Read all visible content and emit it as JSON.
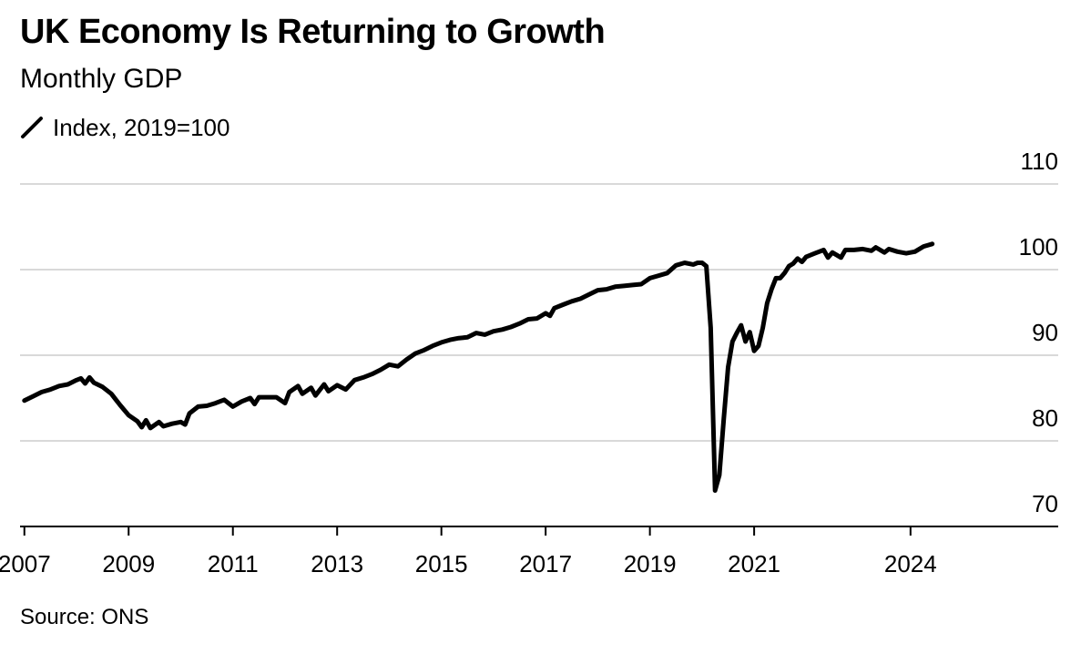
{
  "title": "UK Economy Is Returning to Growth",
  "subtitle": "Monthly GDP",
  "legend": {
    "label": "Index, 2019=100",
    "color": "#000000"
  },
  "source": "Source: ONS",
  "chart_data": {
    "type": "line",
    "title": "UK Economy Is Returning to Growth",
    "subtitle": "Monthly GDP",
    "xlabel": "",
    "ylabel": "",
    "ylim": [
      70,
      110
    ],
    "yticks": [
      70,
      80,
      90,
      100,
      110
    ],
    "xlim": [
      "2006-12",
      "2026-11"
    ],
    "xticks": [
      "2007",
      "2009",
      "2011",
      "2013",
      "2015",
      "2017",
      "2019",
      "2021",
      "2024"
    ],
    "grid": true,
    "legend_position": "top-left",
    "series": [
      {
        "name": "Index, 2019=100",
        "color": "#000000",
        "points": [
          [
            "2007-01",
            84.7
          ],
          [
            "2007-03",
            85.2
          ],
          [
            "2007-05",
            85.7
          ],
          [
            "2007-07",
            86.0
          ],
          [
            "2007-09",
            86.4
          ],
          [
            "2007-11",
            86.6
          ],
          [
            "2008-01",
            87.1
          ],
          [
            "2008-02",
            87.3
          ],
          [
            "2008-03",
            86.7
          ],
          [
            "2008-04",
            87.4
          ],
          [
            "2008-05",
            86.8
          ],
          [
            "2008-07",
            86.3
          ],
          [
            "2008-09",
            85.5
          ],
          [
            "2008-11",
            84.2
          ],
          [
            "2009-01",
            83.0
          ],
          [
            "2009-03",
            82.3
          ],
          [
            "2009-04",
            81.6
          ],
          [
            "2009-05",
            82.4
          ],
          [
            "2009-06",
            81.5
          ],
          [
            "2009-08",
            82.2
          ],
          [
            "2009-09",
            81.7
          ],
          [
            "2009-11",
            82.0
          ],
          [
            "2010-01",
            82.2
          ],
          [
            "2010-02",
            81.9
          ],
          [
            "2010-03",
            83.2
          ],
          [
            "2010-05",
            84.0
          ],
          [
            "2010-07",
            84.1
          ],
          [
            "2010-09",
            84.4
          ],
          [
            "2010-11",
            84.8
          ],
          [
            "2011-01",
            84.0
          ],
          [
            "2011-03",
            84.6
          ],
          [
            "2011-05",
            85.0
          ],
          [
            "2011-06",
            84.3
          ],
          [
            "2011-07",
            85.1
          ],
          [
            "2011-09",
            85.1
          ],
          [
            "2011-11",
            85.1
          ],
          [
            "2012-01",
            84.4
          ],
          [
            "2012-02",
            85.7
          ],
          [
            "2012-04",
            86.4
          ],
          [
            "2012-05",
            85.5
          ],
          [
            "2012-07",
            86.2
          ],
          [
            "2012-08",
            85.3
          ],
          [
            "2012-10",
            86.6
          ],
          [
            "2012-11",
            85.8
          ],
          [
            "2013-01",
            86.5
          ],
          [
            "2013-03",
            86.0
          ],
          [
            "2013-05",
            87.1
          ],
          [
            "2013-07",
            87.4
          ],
          [
            "2013-09",
            87.8
          ],
          [
            "2013-11",
            88.3
          ],
          [
            "2014-01",
            88.9
          ],
          [
            "2014-03",
            88.7
          ],
          [
            "2014-05",
            89.5
          ],
          [
            "2014-07",
            90.2
          ],
          [
            "2014-09",
            90.6
          ],
          [
            "2014-11",
            91.1
          ],
          [
            "2015-01",
            91.5
          ],
          [
            "2015-03",
            91.8
          ],
          [
            "2015-05",
            92.0
          ],
          [
            "2015-07",
            92.1
          ],
          [
            "2015-09",
            92.6
          ],
          [
            "2015-11",
            92.4
          ],
          [
            "2016-01",
            92.8
          ],
          [
            "2016-03",
            93.0
          ],
          [
            "2016-05",
            93.3
          ],
          [
            "2016-07",
            93.7
          ],
          [
            "2016-09",
            94.2
          ],
          [
            "2016-11",
            94.3
          ],
          [
            "2017-01",
            94.9
          ],
          [
            "2017-02",
            94.6
          ],
          [
            "2017-03",
            95.5
          ],
          [
            "2017-05",
            95.9
          ],
          [
            "2017-07",
            96.3
          ],
          [
            "2017-09",
            96.6
          ],
          [
            "2017-11",
            97.1
          ],
          [
            "2018-01",
            97.6
          ],
          [
            "2018-03",
            97.7
          ],
          [
            "2018-05",
            98.0
          ],
          [
            "2018-07",
            98.1
          ],
          [
            "2018-09",
            98.2
          ],
          [
            "2018-11",
            98.3
          ],
          [
            "2019-01",
            99.0
          ],
          [
            "2019-03",
            99.3
          ],
          [
            "2019-05",
            99.6
          ],
          [
            "2019-07",
            100.5
          ],
          [
            "2019-09",
            100.8
          ],
          [
            "2019-11",
            100.6
          ],
          [
            "2019-12",
            100.8
          ],
          [
            "2020-01",
            100.8
          ],
          [
            "2020-02",
            100.4
          ],
          [
            "2020-03",
            93.2
          ],
          [
            "2020-04",
            74.2
          ],
          [
            "2020-05",
            76.0
          ],
          [
            "2020-06",
            82.5
          ],
          [
            "2020-07",
            88.6
          ],
          [
            "2020-08",
            91.6
          ],
          [
            "2020-09",
            92.6
          ],
          [
            "2020-10",
            93.5
          ],
          [
            "2020-11",
            91.6
          ],
          [
            "2020-12",
            92.7
          ],
          [
            "2021-01",
            90.5
          ],
          [
            "2021-02",
            91.1
          ],
          [
            "2021-03",
            93.2
          ],
          [
            "2021-04",
            96.1
          ],
          [
            "2021-05",
            97.7
          ],
          [
            "2021-06",
            99.0
          ],
          [
            "2021-07",
            99.0
          ],
          [
            "2021-08",
            99.6
          ],
          [
            "2021-09",
            100.4
          ],
          [
            "2021-10",
            100.7
          ],
          [
            "2021-11",
            101.3
          ],
          [
            "2021-12",
            100.9
          ],
          [
            "2022-01",
            101.5
          ],
          [
            "2022-03",
            101.9
          ],
          [
            "2022-05",
            102.3
          ],
          [
            "2022-06",
            101.4
          ],
          [
            "2022-07",
            102.0
          ],
          [
            "2022-09",
            101.4
          ],
          [
            "2022-10",
            102.3
          ],
          [
            "2022-12",
            102.3
          ],
          [
            "2023-02",
            102.4
          ],
          [
            "2023-04",
            102.2
          ],
          [
            "2023-05",
            102.6
          ],
          [
            "2023-07",
            102.0
          ],
          [
            "2023-08",
            102.4
          ],
          [
            "2023-10",
            102.1
          ],
          [
            "2023-12",
            101.9
          ],
          [
            "2024-02",
            102.1
          ],
          [
            "2024-04",
            102.7
          ],
          [
            "2024-06",
            103.0
          ]
        ]
      }
    ]
  }
}
